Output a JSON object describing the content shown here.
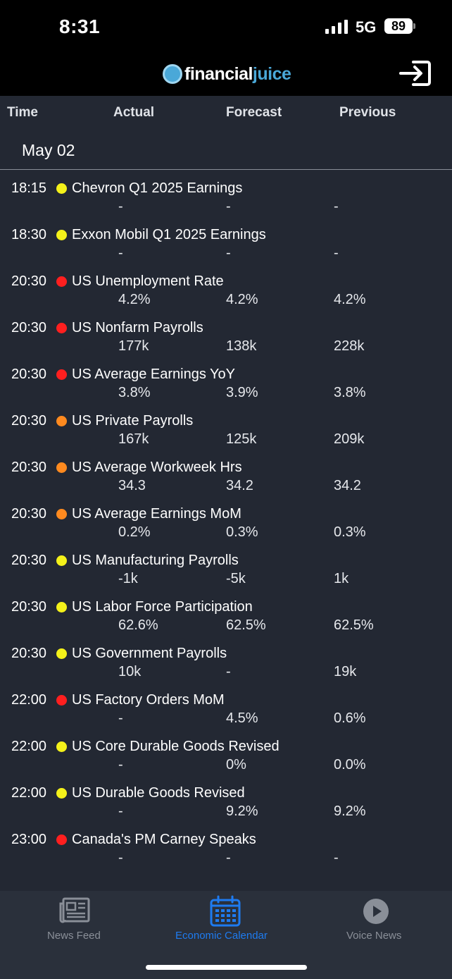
{
  "status_bar": {
    "time": "8:31",
    "network": "5G",
    "battery": "89"
  },
  "header": {
    "brand_part1": "financial",
    "brand_part2": "juice",
    "login_icon": "login-icon"
  },
  "columns": {
    "time": "Time",
    "actual": "Actual",
    "forecast": "Forecast",
    "previous": "Previous"
  },
  "date": "May 02",
  "colors": {
    "high": "#ff1f1f",
    "medium": "#ff8a1f",
    "low": "#f4f11a",
    "accent": "#1e7bf0",
    "inactive": "#8a8f98"
  },
  "events": [
    {
      "time": "18:15",
      "impact": "low",
      "name": "Chevron Q1 2025 Earnings",
      "actual": "-",
      "forecast": "-",
      "previous": "-"
    },
    {
      "time": "18:30",
      "impact": "low",
      "name": "Exxon Mobil Q1 2025 Earnings",
      "actual": "-",
      "forecast": "-",
      "previous": "-"
    },
    {
      "time": "20:30",
      "impact": "high",
      "name": "US Unemployment Rate",
      "actual": "4.2%",
      "forecast": "4.2%",
      "previous": "4.2%"
    },
    {
      "time": "20:30",
      "impact": "high",
      "name": "US Nonfarm Payrolls",
      "actual": "177k",
      "forecast": "138k",
      "previous": "228k"
    },
    {
      "time": "20:30",
      "impact": "high",
      "name": "US Average Earnings YoY",
      "actual": "3.8%",
      "forecast": "3.9%",
      "previous": "3.8%"
    },
    {
      "time": "20:30",
      "impact": "medium",
      "name": "US Private Payrolls",
      "actual": "167k",
      "forecast": "125k",
      "previous": "209k"
    },
    {
      "time": "20:30",
      "impact": "medium",
      "name": "US Average Workweek Hrs",
      "actual": "34.3",
      "forecast": "34.2",
      "previous": "34.2"
    },
    {
      "time": "20:30",
      "impact": "medium",
      "name": "US Average Earnings MoM",
      "actual": "0.2%",
      "forecast": "0.3%",
      "previous": "0.3%"
    },
    {
      "time": "20:30",
      "impact": "low",
      "name": "US Manufacturing Payrolls",
      "actual": "-1k",
      "forecast": "-5k",
      "previous": "1k"
    },
    {
      "time": "20:30",
      "impact": "low",
      "name": "US Labor Force Participation",
      "actual": "62.6%",
      "forecast": "62.5%",
      "previous": "62.5%"
    },
    {
      "time": "20:30",
      "impact": "low",
      "name": "US Government Payrolls",
      "actual": "10k",
      "forecast": "-",
      "previous": "19k"
    },
    {
      "time": "22:00",
      "impact": "high",
      "name": "US Factory Orders MoM",
      "actual": "-",
      "forecast": "4.5%",
      "previous": "0.6%"
    },
    {
      "time": "22:00",
      "impact": "low",
      "name": "US Core Durable Goods Revised",
      "actual": "-",
      "forecast": "0%",
      "previous": "0.0%"
    },
    {
      "time": "22:00",
      "impact": "low",
      "name": "US Durable Goods Revised",
      "actual": "-",
      "forecast": "9.2%",
      "previous": "9.2%"
    },
    {
      "time": "23:00",
      "impact": "high",
      "name": "Canada's PM Carney Speaks",
      "actual": "-",
      "forecast": "-",
      "previous": "-"
    }
  ],
  "tabs": [
    {
      "label": "News Feed",
      "icon": "newspaper-icon",
      "active": false
    },
    {
      "label": "Economic Calendar",
      "icon": "calendar-icon",
      "active": true
    },
    {
      "label": "Voice News",
      "icon": "play-icon",
      "active": false
    }
  ]
}
